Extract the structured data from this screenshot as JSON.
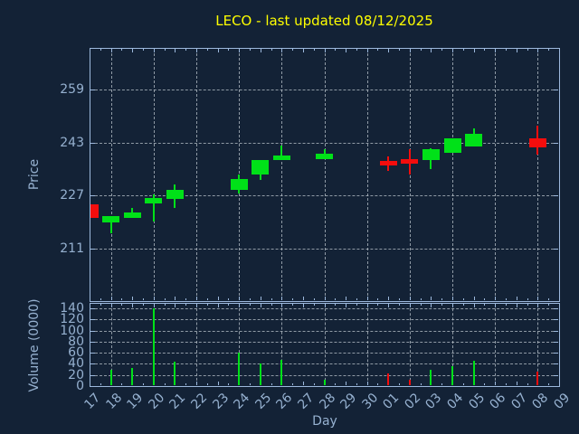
{
  "title": {
    "text": "LECO - last updated 08/12/2025"
  },
  "colors": {
    "background": "#132236",
    "axis_border": "#9db9dd",
    "tick_text": "#96b1d0",
    "grid": "#b9c2ca",
    "title_text": "#ffff00",
    "up": "#00e118",
    "down": "#f40d0d"
  },
  "price_axis": {
    "label": "Price",
    "ticks": [
      "211",
      "227",
      "243",
      "259"
    ]
  },
  "volume_axis": {
    "label": "Volume (0000)",
    "ticks": [
      "0",
      "20",
      "40",
      "60",
      "80",
      "100",
      "120",
      "140"
    ]
  },
  "x_axis": {
    "label": "Day",
    "categories": [
      "17",
      "18",
      "19",
      "20",
      "21",
      "22",
      "23",
      "24",
      "25",
      "26",
      "27",
      "28",
      "29",
      "30",
      "01",
      "02",
      "03",
      "04",
      "05",
      "06",
      "07",
      "08",
      "09"
    ]
  },
  "chart_data": [
    {
      "type": "candlestick",
      "title": "LECO - last updated 08/12/2025",
      "xlabel": "Day",
      "ylabel": "Price",
      "ylim": [
        195.2,
        271.5
      ],
      "ytick_values": [
        211,
        227,
        243,
        259
      ],
      "grid": "dashed, vertical gridlines on alternate days",
      "x": [
        "17",
        "18",
        "19",
        "20",
        "21",
        "22",
        "23",
        "24",
        "25",
        "26",
        "27",
        "28",
        "29",
        "30",
        "01",
        "02",
        "03",
        "04",
        "05",
        "06",
        "07",
        "08",
        "09"
      ],
      "ohlc": [
        {
          "day": "17",
          "open": 224.4,
          "high": 224.4,
          "low": 220.3,
          "close": 220.3,
          "direction": "down"
        },
        {
          "day": "18",
          "open": 218.9,
          "high": 220.8,
          "low": 215.5,
          "close": 220.8,
          "direction": "up"
        },
        {
          "day": "19",
          "open": 220.3,
          "high": 223.3,
          "low": 220.3,
          "close": 221.9,
          "direction": "up"
        },
        {
          "day": "20",
          "open": 224.6,
          "high": 227.4,
          "low": 219.2,
          "close": 226.2,
          "direction": "up"
        },
        {
          "day": "21",
          "open": 226.0,
          "high": 230.3,
          "low": 223.4,
          "close": 228.7,
          "direction": "up"
        },
        {
          "day": "24",
          "open": 228.7,
          "high": 233.4,
          "low": 227.6,
          "close": 231.9,
          "direction": "up"
        },
        {
          "day": "25",
          "open": 233.3,
          "high": 237.6,
          "low": 231.6,
          "close": 237.6,
          "direction": "up"
        },
        {
          "day": "26",
          "open": 237.6,
          "high": 242.2,
          "low": 237.6,
          "close": 239.2,
          "direction": "up"
        },
        {
          "day": "28",
          "open": 238.0,
          "high": 240.9,
          "low": 238.0,
          "close": 239.6,
          "direction": "up"
        },
        {
          "day": "01",
          "open": 237.4,
          "high": 238.9,
          "low": 234.4,
          "close": 236.0,
          "direction": "down"
        },
        {
          "day": "02",
          "open": 238.0,
          "high": 241.0,
          "low": 233.4,
          "close": 236.7,
          "direction": "down"
        },
        {
          "day": "03",
          "open": 237.6,
          "high": 241.4,
          "low": 234.9,
          "close": 241.0,
          "direction": "up"
        },
        {
          "day": "04",
          "open": 239.8,
          "high": 244.2,
          "low": 239.8,
          "close": 244.2,
          "direction": "up"
        },
        {
          "day": "05",
          "open": 241.7,
          "high": 247.2,
          "low": 241.7,
          "close": 245.6,
          "direction": "up"
        },
        {
          "day": "08",
          "open": 244.2,
          "high": 248.0,
          "low": 239.4,
          "close": 241.5,
          "direction": "down"
        }
      ],
      "days_without_data": [
        "22",
        "23",
        "27",
        "29",
        "30",
        "06",
        "07",
        "09"
      ]
    },
    {
      "type": "bar",
      "xlabel": "Day",
      "ylabel": "Volume (0000)",
      "ylim": [
        0,
        150
      ],
      "ytick_values": [
        0,
        20,
        40,
        60,
        80,
        100,
        120,
        140
      ],
      "values": [
        {
          "day": "18",
          "value": 30,
          "direction": "up"
        },
        {
          "day": "19",
          "value": 33,
          "direction": "up"
        },
        {
          "day": "20",
          "value": 141,
          "direction": "up"
        },
        {
          "day": "21",
          "value": 44,
          "direction": "up"
        },
        {
          "day": "24",
          "value": 60,
          "direction": "up"
        },
        {
          "day": "25",
          "value": 41,
          "direction": "up"
        },
        {
          "day": "26",
          "value": 48,
          "direction": "up"
        },
        {
          "day": "28",
          "value": 11,
          "direction": "up"
        },
        {
          "day": "01",
          "value": 23,
          "direction": "down"
        },
        {
          "day": "02",
          "value": 11,
          "direction": "down"
        },
        {
          "day": "03",
          "value": 29,
          "direction": "up"
        },
        {
          "day": "04",
          "value": 36,
          "direction": "up"
        },
        {
          "day": "05",
          "value": 46,
          "direction": "up"
        },
        {
          "day": "08",
          "value": 26,
          "direction": "down"
        }
      ]
    }
  ]
}
